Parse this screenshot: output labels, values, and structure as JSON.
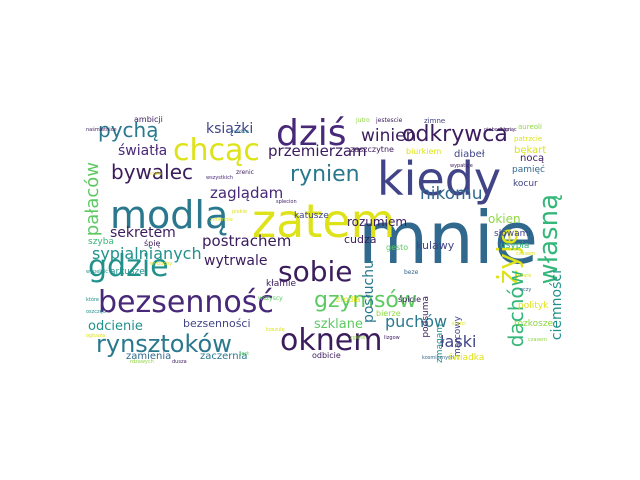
{
  "palette": {
    "dark_purple": "#482878",
    "deep_purple": "#3b1c5c",
    "teal": "#2a788e",
    "blue": "#31688e",
    "sea_green": "#21918c",
    "green": "#35b779",
    "yellow_green": "#5ec962",
    "lime": "#90d743",
    "yellow": "#dde318",
    "dark_slate": "#414487"
  },
  "words": [
    {
      "text": "mnie",
      "color": "#31688e"
    },
    {
      "text": "zatem",
      "color": "#dde318"
    },
    {
      "text": "kiedy",
      "color": "#414487"
    },
    {
      "text": "modlą",
      "color": "#2a788e"
    },
    {
      "text": "chcąc",
      "color": "#dde318"
    },
    {
      "text": "dziś",
      "color": "#482878"
    },
    {
      "text": "oknem",
      "color": "#3b1c5c"
    },
    {
      "text": "bezsenność",
      "color": "#482878"
    },
    {
      "text": "gdzie",
      "color": "#21918c"
    },
    {
      "text": "sobie",
      "color": "#3b1c5c"
    },
    {
      "text": "żyje",
      "color": "#dde318"
    },
    {
      "text": "własną",
      "color": "#35b779"
    },
    {
      "text": "rynsztoków",
      "color": "#2a788e"
    },
    {
      "text": "odkrywca",
      "color": "#3b1c5c"
    },
    {
      "text": "gzymsów",
      "color": "#5ec962"
    },
    {
      "text": "rynien",
      "color": "#2a788e"
    },
    {
      "text": "bywalec",
      "color": "#3b1c5c"
    },
    {
      "text": "dachów",
      "color": "#35b779"
    },
    {
      "text": "sypialnianych",
      "color": "#21918c"
    },
    {
      "text": "pałaców",
      "color": "#5ec962"
    },
    {
      "text": "pychą",
      "color": "#2a788e"
    },
    {
      "text": "winien",
      "color": "#3b1c5c"
    },
    {
      "text": "nikomu",
      "color": "#31688e"
    },
    {
      "text": "przemierzam",
      "color": "#3b1c5c"
    },
    {
      "text": "zaglądam",
      "color": "#482878"
    },
    {
      "text": "postrachem",
      "color": "#3b1c5c"
    },
    {
      "text": "sekretem",
      "color": "#3b1c5c"
    },
    {
      "text": "wytrwale",
      "color": "#3b1c5c"
    },
    {
      "text": "puchów",
      "color": "#2a788e"
    },
    {
      "text": "łaski",
      "color": "#414487"
    },
    {
      "text": "ciemności",
      "color": "#21918c"
    },
    {
      "text": "posłuchu",
      "color": "#2a788e"
    },
    {
      "text": "szklane",
      "color": "#5ec962"
    },
    {
      "text": "odcienie",
      "color": "#21918c"
    },
    {
      "text": "książki",
      "color": "#414487"
    },
    {
      "text": "światła",
      "color": "#482878"
    },
    {
      "text": "rozumiem",
      "color": "#3b1c5c"
    },
    {
      "text": "okien",
      "color": "#90d743"
    },
    {
      "text": "bezsenności",
      "color": "#414487"
    },
    {
      "text": "cudza",
      "color": "#3b1c5c"
    },
    {
      "text": "kulawy",
      "color": "#414487"
    },
    {
      "text": "zamienia",
      "color": "#31688e"
    },
    {
      "text": "zaczernia",
      "color": "#2a788e"
    },
    {
      "text": "podsuma",
      "color": "#3b1c5c"
    },
    {
      "text": "zmagam",
      "color": "#21918c"
    },
    {
      "text": "marcowy",
      "color": "#414487"
    },
    {
      "text": "diabeł",
      "color": "#414487"
    },
    {
      "text": "nocą",
      "color": "#3b1c5c"
    },
    {
      "text": "bękart",
      "color": "#dde318"
    },
    {
      "text": "kocur",
      "color": "#414487"
    },
    {
      "text": "pamięć",
      "color": "#31688e"
    },
    {
      "text": "słowami",
      "color": "#414487"
    },
    {
      "text": "usypia",
      "color": "#35b779"
    },
    {
      "text": "polityk",
      "color": "#dde318"
    },
    {
      "text": "rozkosze",
      "color": "#90d743"
    },
    {
      "text": "świadka",
      "color": "#dde318"
    },
    {
      "text": "odbicie",
      "color": "#3b1c5c"
    },
    {
      "text": "arkusze",
      "color": "#21918c"
    },
    {
      "text": "szyba",
      "color": "#35b779"
    },
    {
      "text": "śpię",
      "color": "#3b1c5c"
    },
    {
      "text": "kłamie",
      "color": "#3b1c5c"
    },
    {
      "text": "katusze",
      "color": "#414487"
    },
    {
      "text": "biurkiem",
      "color": "#dde318"
    },
    {
      "text": "zaszczytne",
      "color": "#3b1c5c"
    },
    {
      "text": "ambicji",
      "color": "#3b1c5c"
    },
    {
      "text": "zrodła",
      "color": "#dde318"
    },
    {
      "text": "gesto",
      "color": "#5ec962"
    },
    {
      "text": "bierze",
      "color": "#90d743"
    },
    {
      "text": "śpicie",
      "color": "#3b1c5c"
    },
    {
      "text": "wszyscy",
      "color": "#5ec962"
    },
    {
      "text": "aureoli",
      "color": "#90d743"
    },
    {
      "text": "patrzcie",
      "color": "#dde318"
    },
    {
      "text": "zimne",
      "color": "#414487"
    },
    {
      "text": "jestescie",
      "color": "#3b1c5c"
    },
    {
      "text": "jutro",
      "color": "#90d743"
    },
    {
      "text": "beze",
      "color": "#31688e"
    },
    {
      "text": "zrenic",
      "color": "#3b1c5c"
    },
    {
      "text": "piekle",
      "color": "#dde318"
    },
    {
      "text": "sterci",
      "color": "#dde318"
    },
    {
      "text": "oczy",
      "color": "#31688e"
    },
    {
      "text": "ciało",
      "color": "#dde318"
    },
    {
      "text": "wybuchy",
      "color": "#dde318"
    },
    {
      "text": "szare",
      "color": "#dde318"
    },
    {
      "text": "czasem",
      "color": "#dde318"
    },
    {
      "text": "wypatuje",
      "color": "#3b1c5c"
    },
    {
      "text": "wypełnić",
      "color": "#21918c"
    },
    {
      "text": "które",
      "color": "#21918c"
    },
    {
      "text": "oszczęd",
      "color": "#21918c"
    },
    {
      "text": "ogłusza",
      "color": "#dde318"
    },
    {
      "text": "naśmietnice",
      "color": "#3b1c5c"
    },
    {
      "text": "wszystkich",
      "color": "#482878"
    },
    {
      "text": "zgięte",
      "color": "#90d743"
    },
    {
      "text": "nakłon",
      "color": "#2a788e"
    },
    {
      "text": "koszulę",
      "color": "#dde318"
    },
    {
      "text": "splecion",
      "color": "#3b1c5c"
    },
    {
      "text": "kosmicznych",
      "color": "#31688e"
    },
    {
      "text": "lizgow",
      "color": "#3b1c5c"
    },
    {
      "text": "zmiennie",
      "color": "#dde318"
    },
    {
      "text": "rdzawych",
      "color": "#90d743"
    },
    {
      "text": "nieboskłon",
      "color": "#3b1c5c"
    },
    {
      "text": "drapiąc",
      "color": "#3b1c5c"
    },
    {
      "text": "czasem",
      "color": "#90d743"
    },
    {
      "text": "jest",
      "color": "#5ec962"
    },
    {
      "text": "dusza",
      "color": "#3b1c5c"
    }
  ]
}
